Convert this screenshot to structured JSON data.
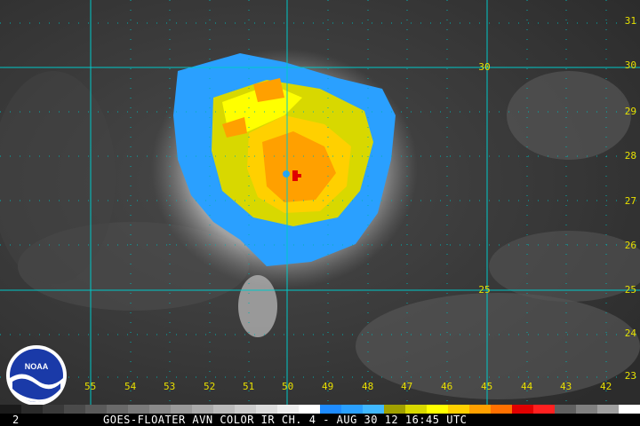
{
  "image": {
    "caption": "GOES-FLOATER AVN COLOR IR CH. 4 - AUG 30 12 16:45 UTC",
    "frame_number": "2",
    "logo_text": "NOAA",
    "storm_center_marker": "red-cross"
  },
  "grid": {
    "latitude_labels_right": [
      "31",
      "30",
      "29",
      "28",
      "27",
      "26",
      "25",
      "24",
      "23"
    ],
    "longitude_labels_bottom": [
      "55",
      "54",
      "53",
      "52",
      "51",
      "50",
      "49",
      "48",
      "47",
      "46",
      "45",
      "44",
      "43",
      "42"
    ],
    "interior_labels": [
      "30",
      "25"
    ],
    "line_color": "#00c8c8",
    "label_color": "#e8e000"
  },
  "colorbar": {
    "colors": [
      "#1a1a1a",
      "#2a2a2a",
      "#3a3a3a",
      "#4a4a4a",
      "#5a5a5a",
      "#6a6a6a",
      "#7a7a7a",
      "#8a8a8a",
      "#9a9a9a",
      "#aaaaaa",
      "#bbbbbb",
      "#cccccc",
      "#dddddd",
      "#eeeeee",
      "#ffffff",
      "#1e8cff",
      "#2aa0ff",
      "#40b8ff",
      "#a0a000",
      "#d8d800",
      "#ffff00",
      "#ffd000",
      "#ffa000",
      "#ff7000",
      "#e00000",
      "#ff2020",
      "#606060",
      "#808080",
      "#a0a0a0",
      "#ffffff"
    ]
  }
}
